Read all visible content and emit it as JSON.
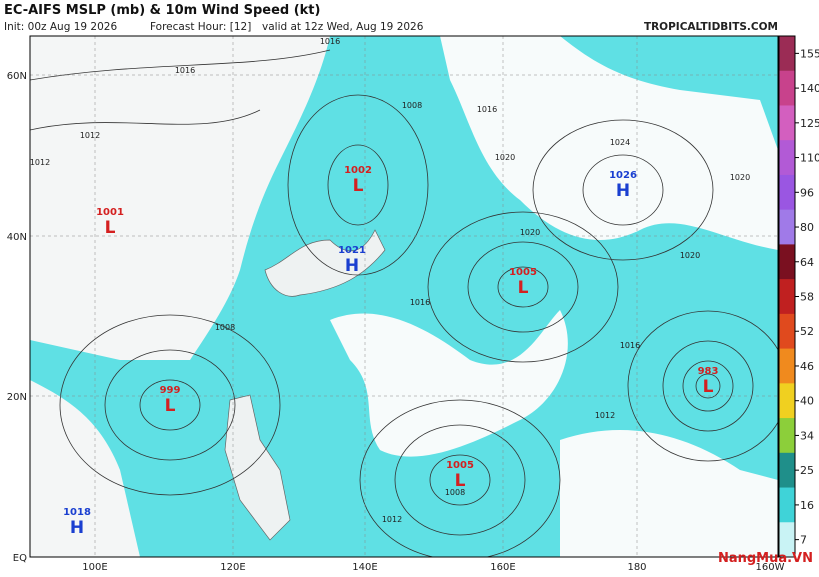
{
  "header": {
    "title": "EC-AIFS MSLP (mb) & 10m Wind Speed (kt)",
    "init": "Init: 00z Aug 19 2026",
    "forecast_hour": "Forecast Hour: [12]",
    "valid": "valid at 12z Wed, Aug 19 2026",
    "site": "TROPICALTIDBITS.COM"
  },
  "lat_labels": [
    "60N",
    "40N",
    "20N",
    "EQ"
  ],
  "lon_labels": [
    "100E",
    "120E",
    "140E",
    "160E",
    "180",
    "160W"
  ],
  "centers": [
    {
      "pressure": "1002",
      "letter": "L"
    },
    {
      "pressure": "1001",
      "letter": "L"
    },
    {
      "pressure": "1021",
      "letter": "H"
    },
    {
      "pressure": "1005",
      "letter": "L"
    },
    {
      "pressure": "1026",
      "letter": "H"
    },
    {
      "pressure": "999",
      "letter": "L"
    },
    {
      "pressure": "1005",
      "letter": "L"
    },
    {
      "pressure": "983",
      "letter": "L"
    },
    {
      "pressure": "1018",
      "letter": "H"
    }
  ],
  "isobar_labels": [
    "1016",
    "1016",
    "1008",
    "1016",
    "1020",
    "1024",
    "1020",
    "1020",
    "1016",
    "1012",
    "1008",
    "1016",
    "1012",
    "1008",
    "1012",
    "1020",
    "1012"
  ],
  "colorbar": {
    "ticks": [
      155,
      140,
      125,
      110,
      96,
      80,
      64,
      58,
      52,
      46,
      40,
      34,
      25,
      16,
      7
    ],
    "colors": [
      "#9b2c55",
      "#c8428c",
      "#d35fbf",
      "#b25ad6",
      "#9a56e2",
      "#a07ae8",
      "#7a1020",
      "#c02020",
      "#e04a1e",
      "#f08a1e",
      "#f0d020",
      "#8ccf3a",
      "#1f8f8a",
      "#3fd3d8",
      "#c9f3f5"
    ]
  },
  "watermark": "NangMua.VN"
}
